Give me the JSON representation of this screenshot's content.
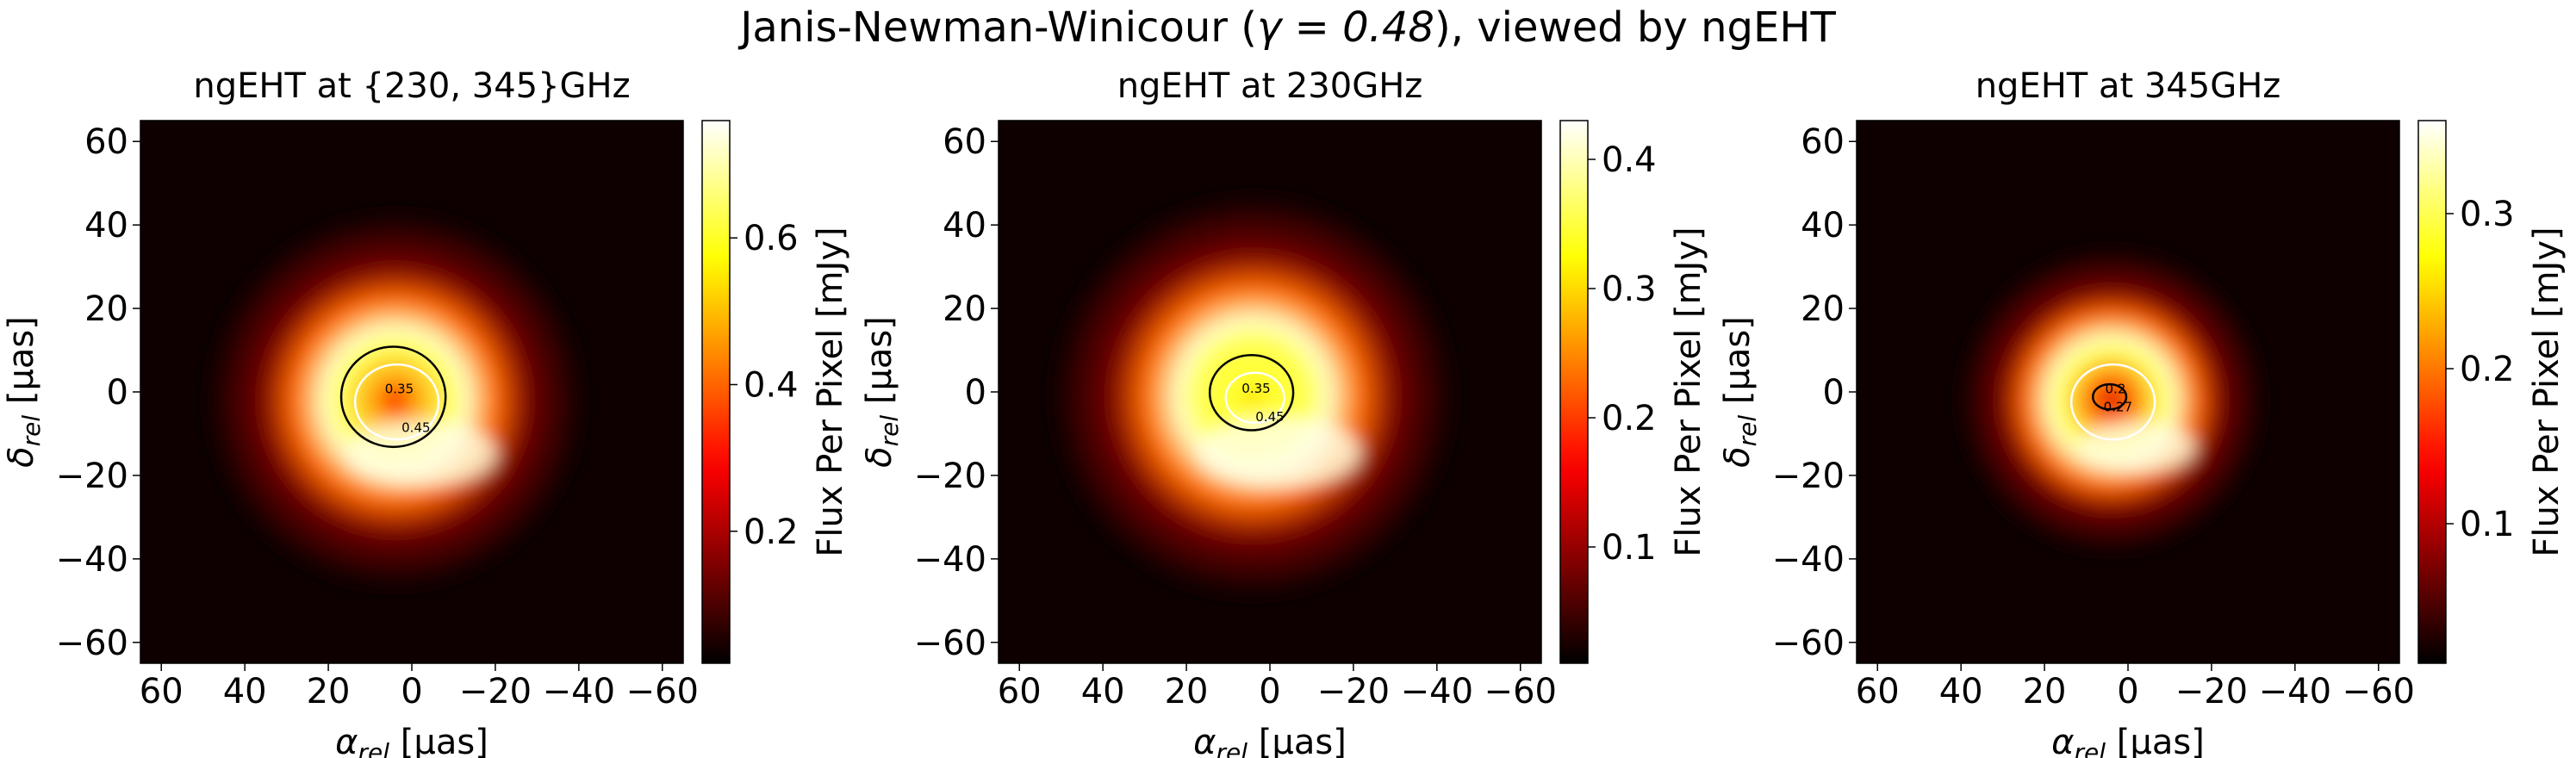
{
  "figure": {
    "title_prefix": "Janis-Newman-Winicour (",
    "title_math": "γ = 0.48",
    "title_suffix": "), viewed by ngEHT"
  },
  "chart_data": [
    {
      "type": "heatmap",
      "title": "ngEHT at {230, 345}GHz",
      "xlabel_sym": "α",
      "xlabel_sub": "rel",
      "xlabel_unit": " [μas]",
      "ylabel_sym": "δ",
      "ylabel_sub": "rel",
      "ylabel_unit": " [μas]",
      "xlim": [
        65,
        -65
      ],
      "ylim": [
        -65,
        65
      ],
      "xticks": [
        60,
        40,
        20,
        0,
        -20,
        -40,
        -60
      ],
      "yticks": [
        60,
        40,
        20,
        0,
        -20,
        -40,
        -60
      ],
      "colorbar": {
        "label": "Flux Per Pixel [mJy]",
        "range": [
          0.02,
          0.76
        ],
        "ticks": [
          0.2,
          0.4,
          0.6
        ]
      },
      "ring": {
        "center": [
          4,
          -2
        ],
        "radius": 17,
        "width": 13,
        "peak": 0.74,
        "inner_min": 0.3
      },
      "contours": [
        {
          "level": 0.35,
          "label": "0.35",
          "color": "#ffffff",
          "rx": 10,
          "ry": 9
        },
        {
          "level": 0.45,
          "label": "0.45",
          "color": "#000000",
          "rx": 12.5,
          "ry": 12
        }
      ]
    },
    {
      "type": "heatmap",
      "title": "ngEHT at 230GHz",
      "xlabel_sym": "α",
      "xlabel_sub": "rel",
      "xlabel_unit": " [μas]",
      "ylabel_sym": "δ",
      "ylabel_sub": "rel",
      "ylabel_unit": " [μas]",
      "xlim": [
        65,
        -65
      ],
      "ylim": [
        -65,
        65
      ],
      "xticks": [
        60,
        40,
        20,
        0,
        -20,
        -40,
        -60
      ],
      "yticks": [
        60,
        40,
        20,
        0,
        -20,
        -40,
        -60
      ],
      "colorbar": {
        "label": "Flux Per Pixel [mJy]",
        "range": [
          0.01,
          0.43
        ],
        "ticks": [
          0.1,
          0.2,
          0.3,
          0.4
        ]
      },
      "ring": {
        "center": [
          4,
          -1
        ],
        "radius": 18,
        "width": 14,
        "peak": 0.42,
        "inner_min": 0.3
      },
      "contours": [
        {
          "level": 0.35,
          "label": "0.35",
          "color": "#ffffff",
          "rx": 7,
          "ry": 6
        },
        {
          "level": 0.45,
          "label": "0.45",
          "color": "#000000",
          "rx": 10,
          "ry": 9
        }
      ]
    },
    {
      "type": "heatmap",
      "title": "ngEHT at 345GHz",
      "xlabel_sym": "α",
      "xlabel_sub": "rel",
      "xlabel_unit": " [μas]",
      "ylabel_sym": "δ",
      "ylabel_sub": "rel",
      "ylabel_unit": " [μas]",
      "xlim": [
        65,
        -65
      ],
      "ylim": [
        -65,
        65
      ],
      "xticks": [
        60,
        40,
        20,
        0,
        -20,
        -40,
        -60
      ],
      "yticks": [
        60,
        40,
        20,
        0,
        -20,
        -40,
        -60
      ],
      "colorbar": {
        "label": "Flux Per Pixel [mJy]",
        "range": [
          0.01,
          0.36
        ],
        "ticks": [
          0.1,
          0.2,
          0.3
        ]
      },
      "ring": {
        "center": [
          4,
          -2
        ],
        "radius": 15,
        "width": 10,
        "peak": 0.35,
        "inner_min": 0.12
      },
      "contours": [
        {
          "level": 0.2,
          "label": "0.2",
          "color": "#ffffff",
          "rx": 10,
          "ry": 9
        },
        {
          "level": 0.27,
          "label": "0.27",
          "color": "#000000",
          "rx": 4,
          "ry": 3
        }
      ]
    }
  ]
}
